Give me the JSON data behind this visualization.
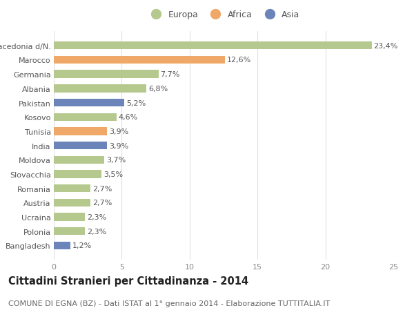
{
  "categories": [
    "Macedonia d/N.",
    "Marocco",
    "Germania",
    "Albania",
    "Pakistan",
    "Kosovo",
    "Tunisia",
    "India",
    "Moldova",
    "Slovacchia",
    "Romania",
    "Austria",
    "Ucraina",
    "Polonia",
    "Bangladesh"
  ],
  "values": [
    23.4,
    12.6,
    7.7,
    6.8,
    5.2,
    4.6,
    3.9,
    3.9,
    3.7,
    3.5,
    2.7,
    2.7,
    2.3,
    2.3,
    1.2
  ],
  "labels": [
    "23,4%",
    "12,6%",
    "7,7%",
    "6,8%",
    "5,2%",
    "4,6%",
    "3,9%",
    "3,9%",
    "3,7%",
    "3,5%",
    "2,7%",
    "2,7%",
    "2,3%",
    "2,3%",
    "1,2%"
  ],
  "continents": [
    "Europa",
    "Africa",
    "Europa",
    "Europa",
    "Asia",
    "Europa",
    "Africa",
    "Asia",
    "Europa",
    "Europa",
    "Europa",
    "Europa",
    "Europa",
    "Europa",
    "Asia"
  ],
  "colors": {
    "Europa": "#b5c98e",
    "Africa": "#f0a868",
    "Asia": "#6b85bb"
  },
  "xlim": [
    0,
    25
  ],
  "xticks": [
    0,
    5,
    10,
    15,
    20,
    25
  ],
  "title": "Cittadini Stranieri per Cittadinanza - 2014",
  "subtitle": "COMUNE DI EGNA (BZ) - Dati ISTAT al 1° gennaio 2014 - Elaborazione TUTTITALIA.IT",
  "background_color": "#ffffff",
  "grid_color": "#e0e0e0",
  "bar_height": 0.55,
  "label_fontsize": 8,
  "tick_fontsize": 8,
  "title_fontsize": 10.5,
  "subtitle_fontsize": 8
}
